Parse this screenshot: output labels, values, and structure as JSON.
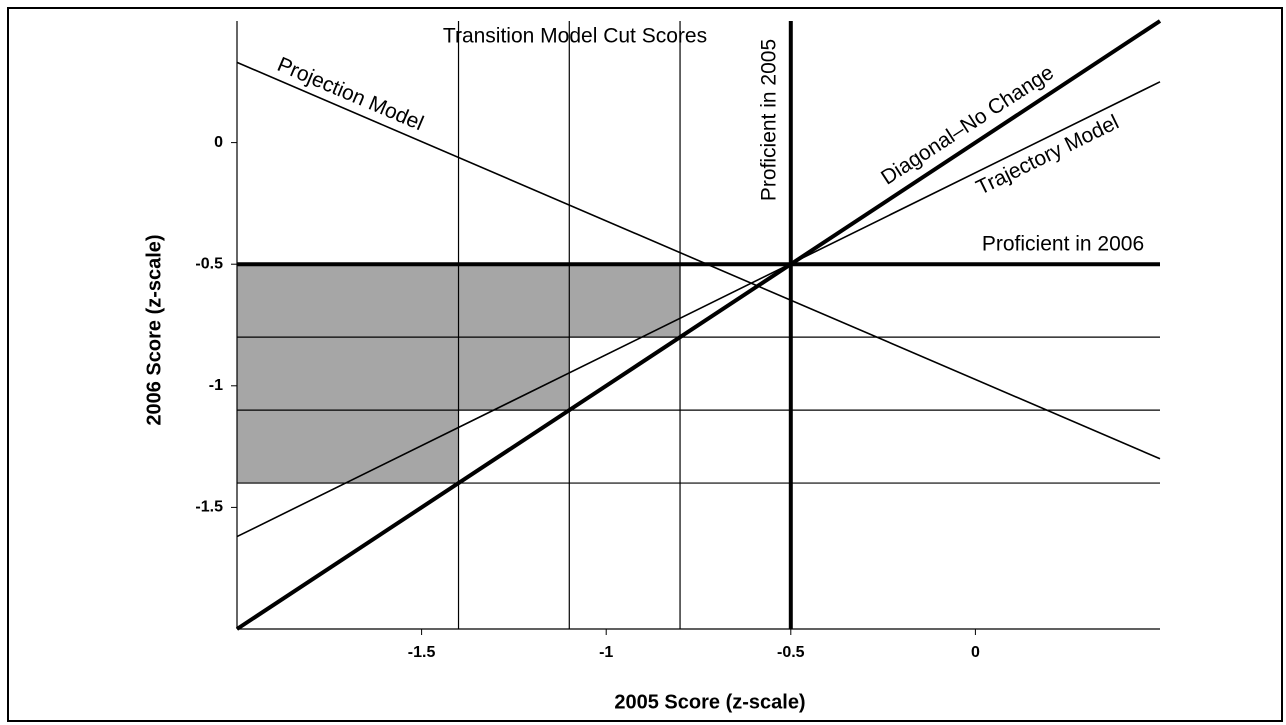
{
  "chart_data": {
    "type": "line",
    "annotation": "Transition Model Cut Scores",
    "xlabel": "2005 Score (z-scale)",
    "ylabel": "2006 Score (z-scale)",
    "xlim": [
      -2,
      0.5
    ],
    "ylim": [
      -2,
      0.5
    ],
    "xticks": [
      -1.5,
      -1,
      -0.5,
      0
    ],
    "yticks": [
      0,
      -0.5,
      -1,
      -1.5
    ],
    "cut_scores_x": [
      -1.4,
      -1.1,
      -0.8
    ],
    "cut_scores_y": [
      -0.8,
      -1.1,
      -1.4
    ],
    "shade_color": "#a6a6a6",
    "series": [
      {
        "name": "Projection Model",
        "color": "#000000",
        "x": [
          -2,
          0.5
        ],
        "values": [
          0.33,
          -1.3
        ]
      },
      {
        "name": "Diagonal–No Change",
        "color": "#000000",
        "x": [
          -2,
          0.5
        ],
        "values": [
          -2,
          0.5
        ]
      },
      {
        "name": "Trajectory Model",
        "color": "#000000",
        "x": [
          -2,
          0.5
        ],
        "values": [
          -1.62,
          0.25
        ]
      },
      {
        "name": "Proficient in 2006",
        "color": "#000000",
        "x": [
          -2,
          0.5
        ],
        "values": [
          -0.5,
          -0.5
        ]
      },
      {
        "name": "Proficient in 2005",
        "color": "#000000",
        "x": [
          -0.5,
          -0.5
        ],
        "values": [
          -2,
          0.5
        ]
      }
    ]
  }
}
